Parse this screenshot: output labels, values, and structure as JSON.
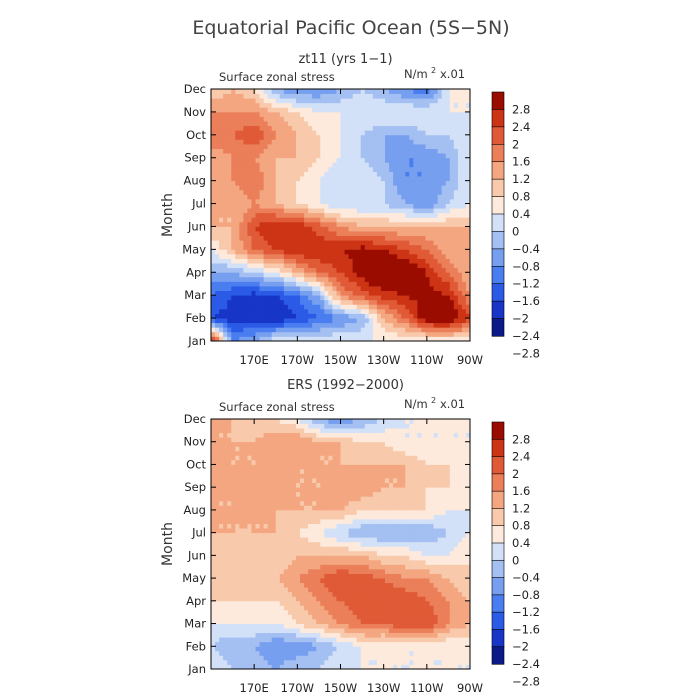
{
  "figure": {
    "title": "Equatorial Pacific Ocean (5S−5N)"
  },
  "colors": {
    "levels_low_to_high": [
      "#0b1a86",
      "#1736c8",
      "#2b5be6",
      "#4a7ef0",
      "#779fef",
      "#a4bff2",
      "#d2e0f8",
      "#fdeadc",
      "#f8c9ab",
      "#f3a680",
      "#eb7f5a",
      "#e05a37",
      "#cc3415",
      "#9a0c00"
    ]
  },
  "chart_data": [
    {
      "type": "heatmap",
      "panel": "top",
      "title": "zt11 (yrs 1−1)",
      "subtitle": "Surface zonal stress",
      "units_label": "N/m",
      "units_sup": "2",
      "units_scale": "x.01",
      "ylabel": "Month",
      "xlabel": "",
      "x_range": [
        150,
        270
      ],
      "x_ticks": [
        170,
        190,
        210,
        230,
        250,
        270
      ],
      "x_tick_labels": [
        "170E",
        "170W",
        "150W",
        "130W",
        "110W",
        "90W"
      ],
      "y_range": [
        1,
        12
      ],
      "y_ticks": [
        1,
        2,
        3,
        4,
        5,
        6,
        7,
        8,
        9,
        10,
        11,
        12
      ],
      "y_tick_labels": [
        "Jan",
        "Feb",
        "Mar",
        "Apr",
        "May",
        "Jun",
        "Jul",
        "Aug",
        "Sep",
        "Oct",
        "Nov",
        "Dec"
      ],
      "colorbar_ticks": [
        -2.8,
        -2.4,
        -2,
        -1.6,
        -1.2,
        -0.8,
        -0.4,
        0,
        0.4,
        0.8,
        1.2,
        1.6,
        2,
        2.4,
        2.8
      ],
      "colorbar_tick_labels": [
        "−2.8",
        "−2.4",
        "−2",
        "−1.6",
        "−1.2",
        "−0.8",
        "−0.4",
        "0",
        "0.4",
        "0.8",
        "1.2",
        "1.6",
        "2",
        "2.4",
        "2.8"
      ],
      "colorbar_labels_top_down": [
        "2.8",
        "2.4",
        "2",
        "1.6",
        "1.2",
        "0.8",
        "0.4",
        "0",
        "−0.4",
        "−0.8",
        "−1.2",
        "−1.6",
        "−2",
        "−2.4",
        "−2.8"
      ],
      "x_grid": [
        150,
        160,
        170,
        180,
        190,
        200,
        210,
        220,
        230,
        240,
        250,
        260,
        270
      ],
      "y_grid": [
        1,
        2,
        3,
        4,
        5,
        6,
        7,
        8,
        9,
        10,
        11,
        12
      ],
      "values": [
        [
          2.4,
          -1.6,
          -1.2,
          -0.4,
          -0.4,
          -0.4,
          -0.4,
          -0.4,
          -0.4,
          -0.4,
          -0.4,
          -0.4,
          -0.4
        ],
        [
          -2.4,
          -2.6,
          -2.6,
          -2.8,
          -2.4,
          -2.0,
          -1.6,
          -1.2,
          0.4,
          1.2,
          2.4,
          2.6,
          1.6
        ],
        [
          -2.0,
          -2.4,
          -2.6,
          -2.4,
          -2.0,
          -1.2,
          0.8,
          1.4,
          1.8,
          2.0,
          2.2,
          2.0,
          0.8
        ],
        [
          -1.2,
          -1.2,
          -0.8,
          -0.4,
          0.4,
          1.2,
          1.6,
          2.2,
          2.8,
          2.6,
          2.0,
          1.2,
          0.4
        ],
        [
          -0.4,
          0.4,
          1.2,
          1.6,
          2.0,
          2.0,
          2.0,
          2.2,
          2.0,
          1.6,
          1.2,
          0.4,
          0.4
        ],
        [
          0.4,
          0.4,
          1.6,
          2.0,
          2.0,
          1.4,
          0.8,
          0.4,
          0.4,
          0.4,
          0.4,
          0.4,
          0.4
        ],
        [
          0.4,
          0.4,
          0.8,
          0.4,
          0.0,
          -0.4,
          -0.8,
          -0.8,
          -0.8,
          -1.2,
          -1.6,
          -0.8,
          -0.4
        ],
        [
          0.4,
          0.8,
          1.2,
          0.4,
          0.0,
          -0.4,
          -0.8,
          -0.4,
          -0.8,
          -1.6,
          -1.6,
          -1.2,
          -0.4
        ],
        [
          0.4,
          0.8,
          0.8,
          0.4,
          0.4,
          0.0,
          -0.4,
          -0.8,
          -1.2,
          -1.6,
          -1.6,
          -1.2,
          -0.4
        ],
        [
          1.2,
          1.2,
          1.6,
          0.8,
          0.4,
          0.0,
          -0.4,
          -0.8,
          -1.2,
          -1.2,
          -0.8,
          -0.8,
          -0.4
        ],
        [
          0.8,
          0.8,
          0.8,
          0.4,
          0.0,
          -0.4,
          -0.4,
          -0.4,
          -0.4,
          -0.4,
          -0.4,
          -0.4,
          -0.4
        ],
        [
          0.0,
          0.4,
          0.0,
          -1.2,
          -1.6,
          -1.6,
          -1.2,
          -0.8,
          -1.2,
          -1.6,
          -2.0,
          -0.4,
          -0.4
        ]
      ]
    },
    {
      "type": "heatmap",
      "panel": "bottom",
      "title": "ERS (1992−2000)",
      "subtitle": "Surface zonal stress",
      "units_label": "N/m",
      "units_sup": "2",
      "units_scale": "x.01",
      "ylabel": "Month",
      "xlabel": "",
      "x_range": [
        150,
        270
      ],
      "x_ticks": [
        170,
        190,
        210,
        230,
        250,
        270
      ],
      "x_tick_labels": [
        "170E",
        "170W",
        "150W",
        "130W",
        "110W",
        "90W"
      ],
      "y_range": [
        1,
        12
      ],
      "y_ticks": [
        1,
        2,
        3,
        4,
        5,
        6,
        7,
        8,
        9,
        10,
        11,
        12
      ],
      "y_tick_labels": [
        "Jan",
        "Feb",
        "Mar",
        "Apr",
        "May",
        "Jun",
        "Jul",
        "Aug",
        "Sep",
        "Oct",
        "Nov",
        "Dec"
      ],
      "colorbar_ticks": [
        -2.8,
        -2.4,
        -2,
        -1.6,
        -1.2,
        -0.8,
        -0.4,
        0,
        0.4,
        0.8,
        1.2,
        1.6,
        2,
        2.4,
        2.8
      ],
      "colorbar_tick_labels": [
        "−2.8",
        "−2.4",
        "−2",
        "−1.6",
        "−1.2",
        "−0.8",
        "−0.4",
        "0",
        "0.4",
        "0.8",
        "1.2",
        "1.6",
        "2",
        "2.4",
        "2.8"
      ],
      "colorbar_labels_top_down": [
        "2.8",
        "2.4",
        "2",
        "1.6",
        "1.2",
        "0.8",
        "0.4",
        "0",
        "−0.4",
        "−0.8",
        "−1.2",
        "−1.6",
        "−2",
        "−2.4",
        "−2.8"
      ],
      "x_grid": [
        150,
        160,
        170,
        180,
        190,
        200,
        210,
        220,
        230,
        240,
        250,
        260,
        270
      ],
      "y_grid": [
        1,
        2,
        3,
        4,
        5,
        6,
        7,
        8,
        9,
        10,
        11,
        12
      ],
      "values": [
        [
          -0.4,
          -0.8,
          -0.8,
          -1.2,
          -0.8,
          -0.8,
          -0.4,
          -0.4,
          -0.4,
          -0.4,
          -0.4,
          -0.4,
          -0.4
        ],
        [
          -0.8,
          -1.2,
          -1.2,
          -1.6,
          -1.6,
          -1.2,
          -0.8,
          -0.4,
          -0.4,
          -0.4,
          -0.4,
          -0.4,
          -0.4
        ],
        [
          -0.4,
          -0.4,
          -0.4,
          -0.4,
          0.0,
          0.4,
          0.8,
          1.2,
          1.2,
          1.6,
          1.6,
          0.8,
          0.4
        ],
        [
          0.0,
          0.0,
          0.0,
          0.0,
          0.4,
          0.8,
          1.2,
          1.6,
          1.6,
          1.6,
          1.2,
          0.8,
          0.4
        ],
        [
          0.0,
          0.0,
          0.4,
          0.4,
          0.8,
          1.2,
          1.6,
          1.4,
          1.2,
          0.8,
          0.8,
          0.4,
          0.0
        ],
        [
          0.0,
          0.0,
          0.0,
          0.0,
          0.4,
          0.4,
          0.4,
          0.4,
          0.0,
          0.0,
          -0.4,
          -0.4,
          0.0
        ],
        [
          0.4,
          0.4,
          0.4,
          0.4,
          0.0,
          -0.4,
          -0.8,
          -1.2,
          -1.2,
          -1.2,
          -1.2,
          -0.8,
          -0.4
        ],
        [
          0.4,
          0.4,
          0.4,
          0.4,
          0.4,
          0.4,
          0.4,
          0.0,
          0.0,
          0.0,
          0.0,
          -0.4,
          -0.4
        ],
        [
          0.4,
          0.4,
          0.8,
          0.8,
          0.4,
          0.4,
          0.8,
          0.8,
          0.4,
          0.4,
          0.0,
          0.0,
          -0.4
        ],
        [
          0.8,
          0.4,
          0.4,
          0.4,
          0.4,
          0.4,
          0.4,
          0.4,
          0.4,
          0.4,
          0.0,
          0.0,
          -0.4
        ],
        [
          0.4,
          0.4,
          0.4,
          0.8,
          0.8,
          0.4,
          0.4,
          0.0,
          0.0,
          -0.4,
          -0.4,
          -0.4,
          -0.4
        ],
        [
          0.4,
          0.4,
          0.0,
          0.0,
          -0.4,
          -1.2,
          -1.6,
          -1.2,
          -0.8,
          -0.4,
          -0.4,
          -0.4,
          -0.4
        ]
      ]
    }
  ]
}
